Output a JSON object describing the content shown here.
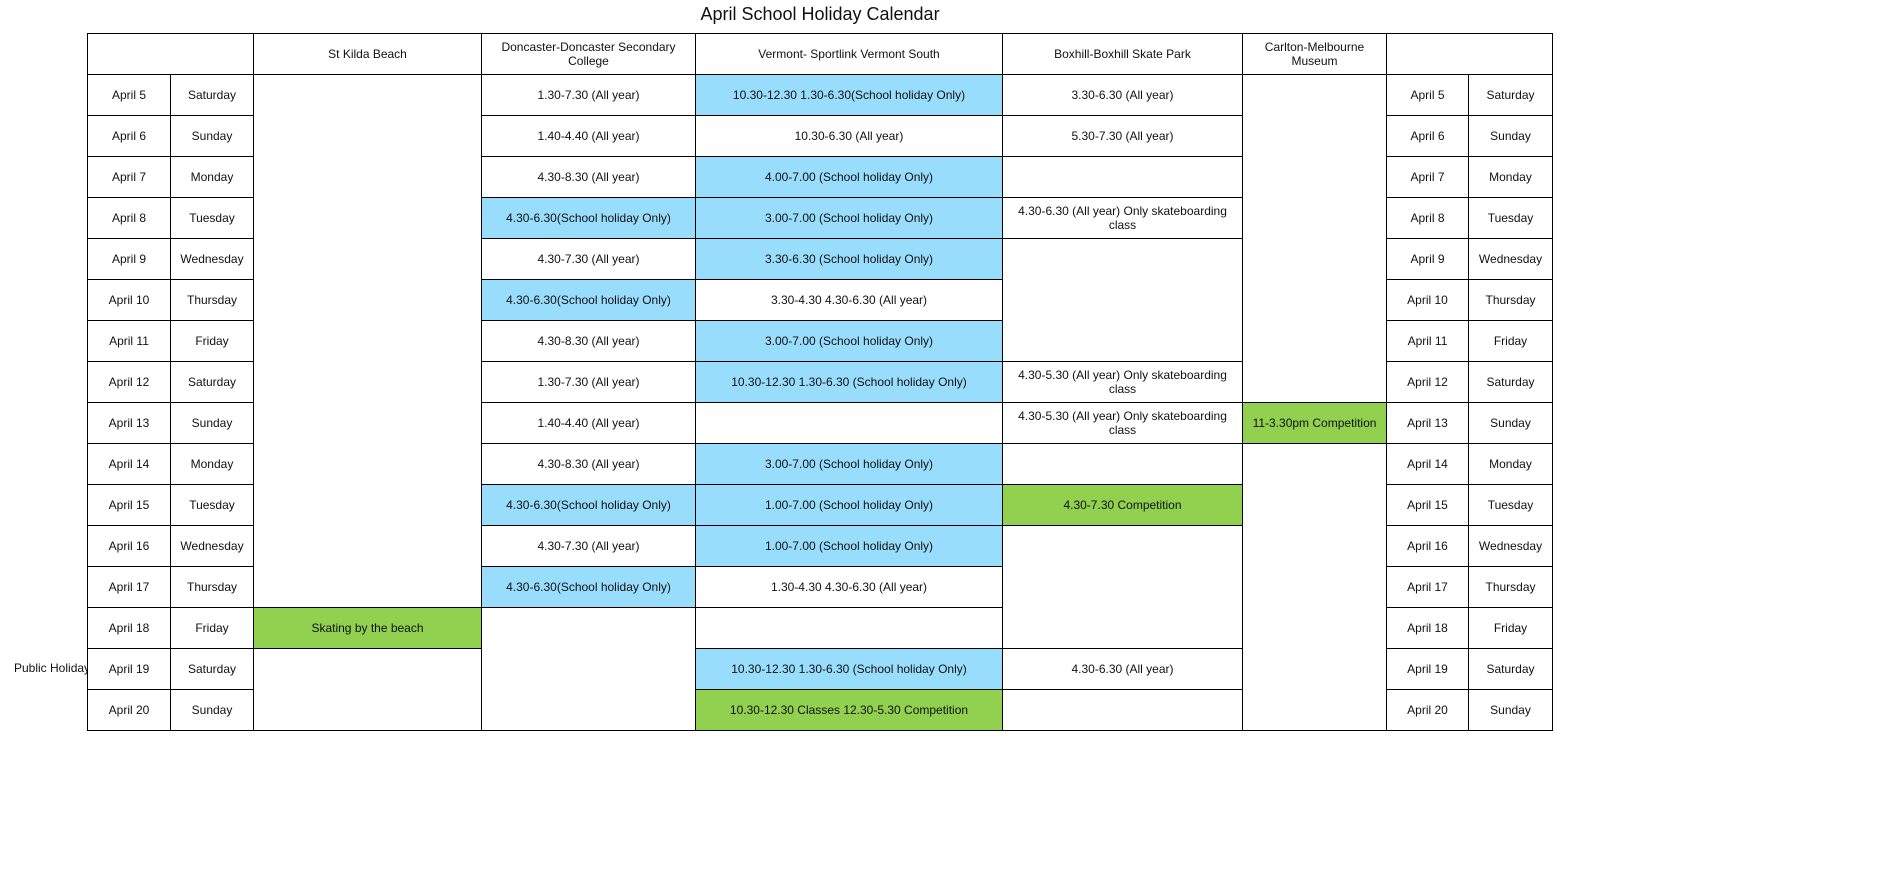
{
  "title": "April School Holiday Calendar",
  "side_note": "Public Holiday",
  "colors": {
    "school_holiday": "#99ddfd",
    "event": "#92d050",
    "border": "#000000"
  },
  "dates": [
    "April 5",
    "April 6",
    "April 7",
    "April 8",
    "April 9",
    "April 10",
    "April 11",
    "April 12",
    "April 13",
    "April 14",
    "April 15",
    "April 16",
    "April 17",
    "April 18",
    "April 19",
    "April 20"
  ],
  "days": [
    "Saturday",
    "Sunday",
    "Monday",
    "Tuesday",
    "Wednesday",
    "Thursday",
    "Friday",
    "Saturday",
    "Sunday",
    "Monday",
    "Tuesday",
    "Wednesday",
    "Thursday",
    "Friday",
    "Saturday",
    "Sunday"
  ],
  "venues": [
    {
      "name": "St Kilda Beach",
      "cells": [
        {
          "text": ""
        },
        {
          "text": "Skating by the beach",
          "fill": "green"
        },
        {
          "text": ""
        }
      ]
    },
    {
      "name": "Doncaster-Doncaster Secondary College",
      "cells": [
        {
          "text": "1.30-7.30 (All year)"
        },
        {
          "text": "1.40-4.40 (All year)"
        },
        {
          "text": "4.30-8.30 (All year)"
        },
        {
          "text": "4.30-6.30(School holiday Only)",
          "fill": "blue"
        },
        {
          "text": "4.30-7.30  (All year)"
        },
        {
          "text": "4.30-6.30(School holiday Only)",
          "fill": "blue"
        },
        {
          "text": "4.30-8.30  (All year)"
        },
        {
          "text": "1.30-7.30 (All year)"
        },
        {
          "text": "1.40-4.40 (All year)"
        },
        {
          "text": "4.30-8.30 (All year)"
        },
        {
          "text": "4.30-6.30(School holiday Only)",
          "fill": "blue"
        },
        {
          "text": "4.30-7.30  (All year)"
        },
        {
          "text": "4.30-6.30(School holiday Only)",
          "fill": "blue"
        },
        {
          "text": ""
        }
      ]
    },
    {
      "name": "Vermont- Sportlink Vermont South",
      "cells": [
        {
          "text": "10.30-12.30 1.30-6.30(School holiday Only)",
          "fill": "blue"
        },
        {
          "text": "10.30-6.30 (All year)"
        },
        {
          "text": "4.00-7.00 (School holiday Only)",
          "fill": "blue"
        },
        {
          "text": "3.00-7.00 (School holiday Only)",
          "fill": "blue"
        },
        {
          "text": "3.30-6.30 (School holiday Only)",
          "fill": "blue"
        },
        {
          "text": "3.30-4.30 4.30-6.30 (All year)"
        },
        {
          "text": "3.00-7.00 (School holiday Only)",
          "fill": "blue"
        },
        {
          "text": "10.30-12.30 1.30-6.30  (School holiday Only)",
          "fill": "blue"
        },
        {
          "text": ""
        },
        {
          "text": "3.00-7.00 (School holiday Only)",
          "fill": "blue"
        },
        {
          "text": "1.00-7.00 (School holiday Only)",
          "fill": "blue"
        },
        {
          "text": "1.00-7.00  (School holiday Only)",
          "fill": "blue"
        },
        {
          "text": "1.30-4.30 4.30-6.30 (All year)"
        },
        {
          "text": ""
        },
        {
          "text": "10.30-12.30 1.30-6.30 (School holiday Only)",
          "fill": "blue"
        },
        {
          "text": "10.30-12.30 Classes  12.30-5.30 Competition",
          "fill": "green"
        }
      ]
    },
    {
      "name": "Boxhill-Boxhill Skate Park",
      "cells": [
        {
          "text": "3.30-6.30 (All year)"
        },
        {
          "text": "5.30-7.30 (All year)"
        },
        {
          "text": ""
        },
        {
          "text": "4.30-6.30 (All year) Only skateboarding class"
        },
        {
          "text": ""
        },
        {
          "text": "4.30-5.30 (All year) Only skateboarding class"
        },
        {
          "text": "4.30-5.30 (All year) Only skateboarding class"
        },
        {
          "text": ""
        },
        {
          "text": "4.30-7.30 Competition",
          "fill": "green"
        },
        {
          "text": ""
        },
        {
          "text": "4.30-6.30 (All year)"
        },
        {
          "text": ""
        }
      ]
    },
    {
      "name": "Carlton-Melbourne Museum",
      "cells": [
        {
          "text": ""
        },
        {
          "text": "11-3.30pm Competition",
          "fill": "green"
        },
        {
          "text": ""
        }
      ]
    }
  ]
}
